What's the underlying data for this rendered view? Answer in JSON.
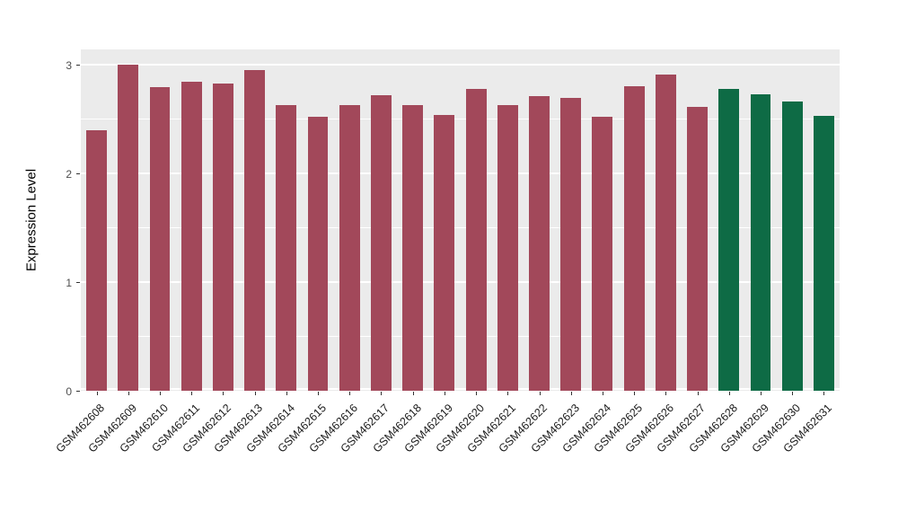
{
  "chart_data": {
    "type": "bar",
    "title": "",
    "xlabel": "",
    "ylabel": "Expression Level",
    "ylim": [
      0,
      3.14
    ],
    "yticks": [
      0,
      1,
      2,
      3
    ],
    "yticks_minor": [
      0.5,
      1.5,
      2.5
    ],
    "grid": "white major and minor horizontal gridlines on gray panel",
    "legend": "none",
    "panel_background": "#EBEBEB",
    "categories": [
      "GSM462608",
      "GSM462609",
      "GSM462610",
      "GSM462611",
      "GSM462612",
      "GSM462613",
      "GSM462614",
      "GSM462615",
      "GSM462616",
      "GSM462617",
      "GSM462618",
      "GSM462619",
      "GSM462620",
      "GSM462621",
      "GSM462622",
      "GSM462623",
      "GSM462624",
      "GSM462625",
      "GSM462626",
      "GSM462627",
      "GSM462628",
      "GSM462629",
      "GSM462630",
      "GSM462631"
    ],
    "values": [
      2.4,
      3.0,
      2.79,
      2.84,
      2.83,
      2.95,
      2.63,
      2.52,
      2.63,
      2.72,
      2.63,
      2.54,
      2.78,
      2.63,
      2.71,
      2.69,
      2.52,
      2.8,
      2.91,
      2.61,
      2.78,
      2.73,
      2.66,
      2.53
    ],
    "colors": [
      "#A2485A",
      "#A2485A",
      "#A2485A",
      "#A2485A",
      "#A2485A",
      "#A2485A",
      "#A2485A",
      "#A2485A",
      "#A2485A",
      "#A2485A",
      "#A2485A",
      "#A2485A",
      "#A2485A",
      "#A2485A",
      "#A2485A",
      "#A2485A",
      "#A2485A",
      "#A2485A",
      "#A2485A",
      "#A2485A",
      "#0E6B45",
      "#0E6B45",
      "#0E6B45",
      "#0E6B45"
    ],
    "color_groups": {
      "maroon": "#A2485A",
      "green": "#0E6B45"
    }
  },
  "layout_note": "vertical bar chart, ggplot-style gray panel, x labels rotated 45 degrees"
}
